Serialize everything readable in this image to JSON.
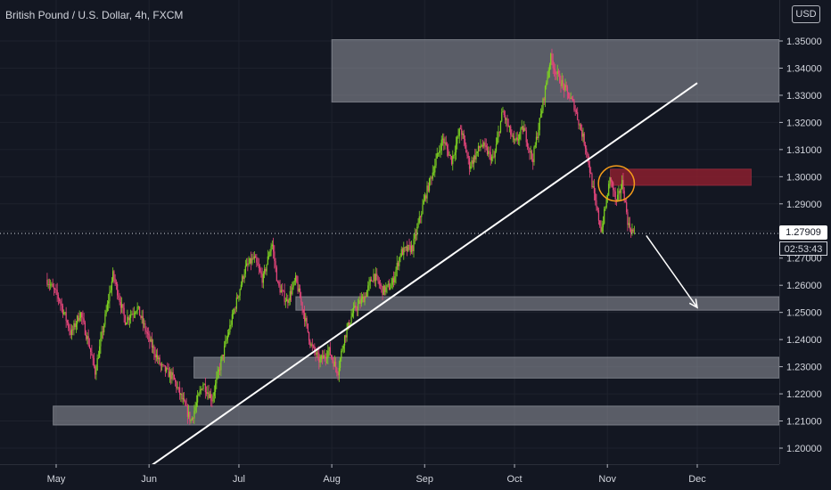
{
  "header": {
    "title": "British Pound / U.S. Dollar, 4h, FXCM",
    "currency_button": "USD"
  },
  "price_tag": {
    "value": "1.27909",
    "countdown": "02:53:43"
  },
  "colors": {
    "background": "#131722",
    "up": "#7ed321",
    "down": "#e8467c",
    "zone": "#9598a1",
    "resistance_zone": "#8b1f2e",
    "annotation": "#f59c1a"
  },
  "chart_data": {
    "type": "candlestick",
    "title": "",
    "xlabel": "",
    "ylabel": "",
    "ylim": [
      1.193,
      1.3545
    ],
    "x_ticks": [
      "May",
      "Jun",
      "Jul",
      "Aug",
      "Sep",
      "Oct",
      "Nov",
      "Dec"
    ],
    "y_ticks": [
      "1.20000",
      "1.21000",
      "1.22000",
      "1.23000",
      "1.24000",
      "1.25000",
      "1.26000",
      "1.27000",
      "1.28000",
      "1.29000",
      "1.30000",
      "1.31000",
      "1.32000",
      "1.33000",
      "1.34000",
      "1.35000"
    ],
    "current_price": 1.27909,
    "price_path": [
      [
        "Apr 28",
        1.262
      ],
      [
        "May 2",
        1.255
      ],
      [
        "May 6",
        1.242
      ],
      [
        "May 9",
        1.25
      ],
      [
        "May 12",
        1.238
      ],
      [
        "May 14",
        1.228
      ],
      [
        "May 18",
        1.252
      ],
      [
        "May 20",
        1.264
      ],
      [
        "May 24",
        1.247
      ],
      [
        "May 28",
        1.252
      ],
      [
        "Jun 1",
        1.24
      ],
      [
        "Jun 5",
        1.23
      ],
      [
        "Jun 9",
        1.226
      ],
      [
        "Jun 12",
        1.218
      ],
      [
        "Jun 15",
        1.21
      ],
      [
        "Jun 19",
        1.224
      ],
      [
        "Jun 22",
        1.218
      ],
      [
        "Jun 26",
        1.236
      ],
      [
        "Jun 29",
        1.249
      ],
      [
        "Jul 3",
        1.266
      ],
      [
        "Jul 6",
        1.27
      ],
      [
        "Jul 9",
        1.262
      ],
      [
        "Jul 12",
        1.276
      ],
      [
        "Jul 14",
        1.26
      ],
      [
        "Jul 17",
        1.254
      ],
      [
        "Jul 20",
        1.262
      ],
      [
        "Jul 23",
        1.248
      ],
      [
        "Jul 25",
        1.238
      ],
      [
        "Jul 28",
        1.232
      ],
      [
        "Jul 31",
        1.236
      ],
      [
        "Aug 3",
        1.228
      ],
      [
        "Aug 5",
        1.24
      ],
      [
        "Aug 8",
        1.25
      ],
      [
        "Aug 12",
        1.256
      ],
      [
        "Aug 15",
        1.264
      ],
      [
        "Aug 18",
        1.258
      ],
      [
        "Aug 21",
        1.26
      ],
      [
        "Aug 24",
        1.272
      ],
      [
        "Aug 28",
        1.274
      ],
      [
        "Sep 1",
        1.292
      ],
      [
        "Sep 4",
        1.303
      ],
      [
        "Sep 7",
        1.314
      ],
      [
        "Sep 10",
        1.306
      ],
      [
        "Sep 13",
        1.318
      ],
      [
        "Sep 16",
        1.304
      ],
      [
        "Sep 20",
        1.312
      ],
      [
        "Sep 24",
        1.306
      ],
      [
        "Sep 27",
        1.324
      ],
      [
        "Oct 1",
        1.312
      ],
      [
        "Oct 4",
        1.318
      ],
      [
        "Oct 7",
        1.306
      ],
      [
        "Oct 10",
        1.324
      ],
      [
        "Oct 13",
        1.344
      ],
      [
        "Oct 15",
        1.338
      ],
      [
        "Oct 18",
        1.332
      ],
      [
        "Oct 21",
        1.326
      ],
      [
        "Oct 25",
        1.31
      ],
      [
        "Oct 28",
        1.29
      ],
      [
        "Oct 30",
        1.28
      ],
      [
        "Nov 2",
        1.3
      ],
      [
        "Nov 4",
        1.29
      ],
      [
        "Nov 6",
        1.298
      ],
      [
        "Nov 8",
        1.282
      ],
      [
        "Nov 10",
        1.279
      ]
    ],
    "zones": [
      {
        "from": "Aug 1",
        "to": "Dec 31",
        "low": 1.3275,
        "high": 1.3505,
        "kind": "supply"
      },
      {
        "from": "Nov 2",
        "to": "Dec 19",
        "low": 1.2968,
        "high": 1.3028,
        "kind": "resistance"
      },
      {
        "from": "Jul 20",
        "to": "Dec 31",
        "low": 1.2508,
        "high": 1.2558,
        "kind": "support"
      },
      {
        "from": "Jun 16",
        "to": "Dec 31",
        "low": 1.2258,
        "high": 1.2335,
        "kind": "support"
      },
      {
        "from": "Apr 30",
        "to": "Dec 31",
        "low": 1.2085,
        "high": 1.2155,
        "kind": "support"
      }
    ],
    "trendline": {
      "from": [
        "Jun 1",
        1.193
      ],
      "to": [
        "Dec 1",
        1.3345
      ]
    },
    "arrow": {
      "from": [
        "Nov 14",
        1.2783
      ],
      "to": [
        "Dec 1",
        1.2518
      ]
    },
    "ellipse": {
      "center": [
        "Nov 4",
        1.2975
      ],
      "rx_days": 6,
      "ry": 0.0065
    }
  }
}
